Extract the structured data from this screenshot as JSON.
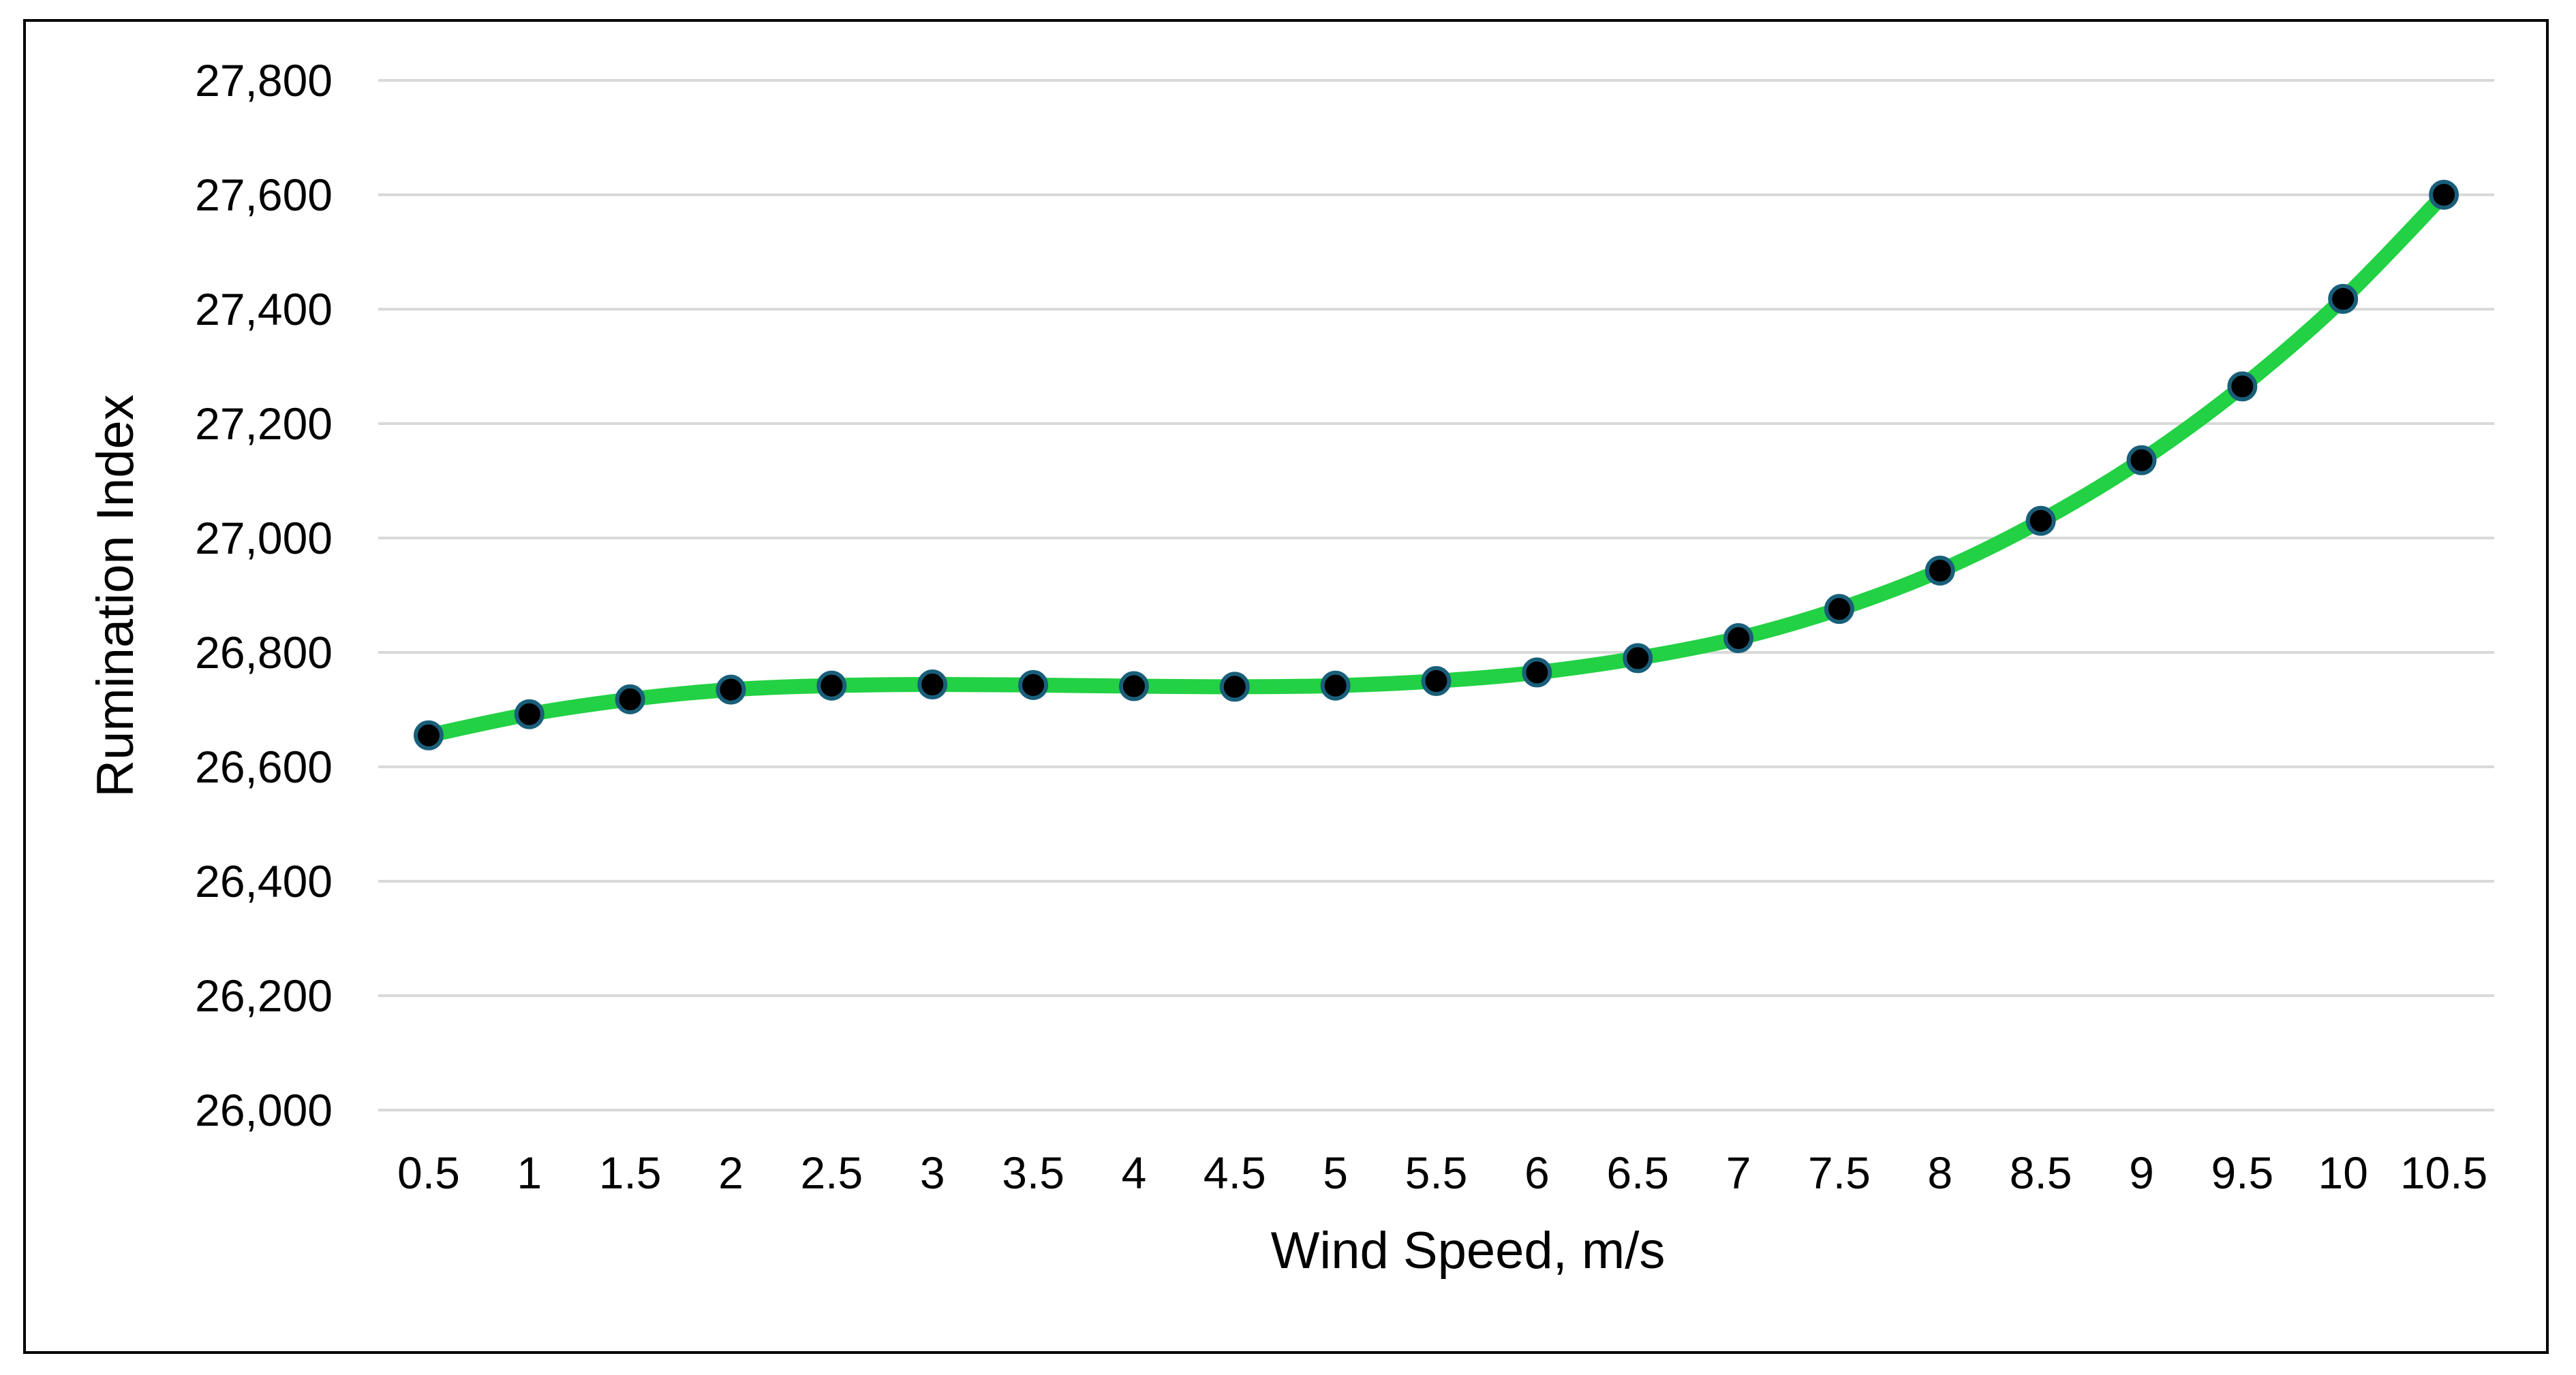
{
  "chart_data": {
    "type": "line",
    "title": "",
    "xlabel": "Wind Speed, m/s",
    "ylabel": "Rumination Index",
    "categories": [
      "0.5",
      "1",
      "1.5",
      "2",
      "2.5",
      "3",
      "3.5",
      "4",
      "4.5",
      "5",
      "5.5",
      "6",
      "6.5",
      "7",
      "7.5",
      "8",
      "8.5",
      "9",
      "9.5",
      "10",
      "10.5"
    ],
    "series": [
      {
        "values": [
          26655,
          26692,
          26718,
          26735,
          26742,
          26744,
          26743,
          26741,
          26740,
          26742,
          26750,
          26765,
          26790,
          26825,
          26876,
          26943,
          27030,
          27136,
          27265,
          27418,
          27600
        ]
      }
    ],
    "ylim": [
      26000,
      27800
    ],
    "yticks": [
      26000,
      26200,
      26400,
      26600,
      26800,
      27000,
      27200,
      27400,
      27600,
      27800
    ],
    "ytick_labels": [
      "26,000",
      "26,200",
      "26,400",
      "26,600",
      "26,800",
      "27,000",
      "27,200",
      "27,400",
      "27,600",
      "27,800"
    ],
    "grid": "horizontal",
    "legend": "none",
    "colors": {
      "line": "#22d144",
      "marker_fill": "#000000",
      "marker_edge": "#1a5f7a",
      "grid": "#d9d9d9",
      "frame": "#000000"
    }
  }
}
